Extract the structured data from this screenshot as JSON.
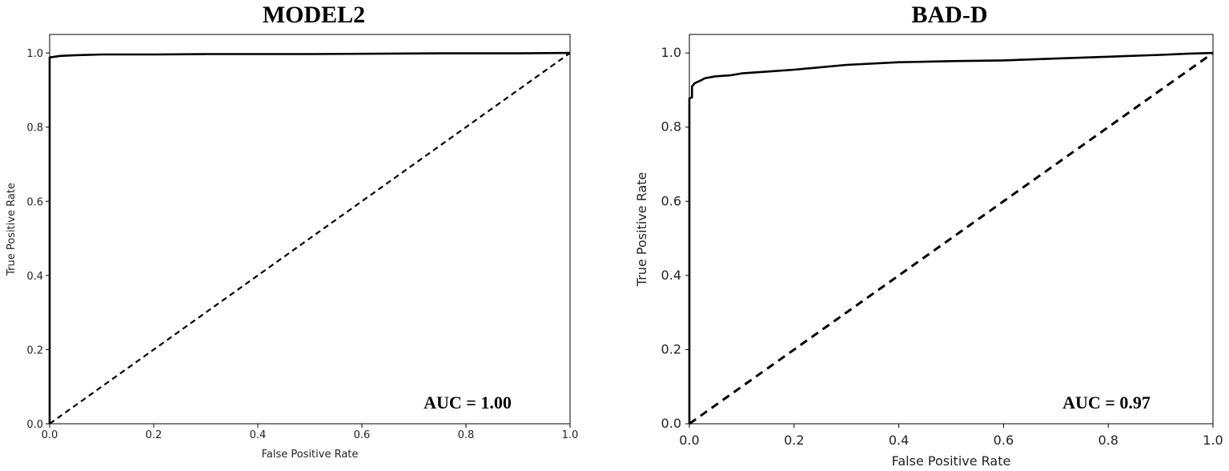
{
  "chart_data": [
    {
      "type": "line",
      "title": "MODEL2",
      "xlabel": "False Positive Rate",
      "ylabel": "True Positive Rate",
      "xlim": [
        0.0,
        1.0
      ],
      "ylim": [
        0.0,
        1.05
      ],
      "xticks": [
        "0.0",
        "0.2",
        "0.4",
        "0.6",
        "0.8",
        "1.0"
      ],
      "yticks": [
        "0.0",
        "0.2",
        "0.4",
        "0.6",
        "0.8",
        "1.0"
      ],
      "annotation": "AUC = 1.00",
      "grid": false,
      "series": [
        {
          "style": "solid",
          "x": [
            0.0,
            0.0,
            0.01,
            0.02,
            0.05,
            0.1,
            0.2,
            0.3,
            0.5,
            0.75,
            0.9,
            1.0
          ],
          "y": [
            0.0,
            0.988,
            0.99,
            0.992,
            0.994,
            0.996,
            0.996,
            0.997,
            0.997,
            0.999,
            0.999,
            1.0
          ]
        },
        {
          "style": "dashed",
          "x": [
            0.0,
            1.0
          ],
          "y": [
            0.0,
            1.0
          ]
        }
      ]
    },
    {
      "type": "line",
      "title": "BAD-D",
      "xlabel": "False Positive Rate",
      "ylabel": "True Positive Rate",
      "xlim": [
        0.0,
        1.0
      ],
      "ylim": [
        0.0,
        1.05
      ],
      "xticks": [
        "0.0",
        "0.2",
        "0.4",
        "0.6",
        "0.8",
        "1.0"
      ],
      "yticks": [
        "0.0",
        "0.2",
        "0.4",
        "0.6",
        "0.8",
        "1.0"
      ],
      "annotation": "AUC = 0.97",
      "grid": false,
      "series": [
        {
          "style": "solid",
          "x": [
            0.0,
            0.0,
            0.005,
            0.005,
            0.01,
            0.02,
            0.03,
            0.05,
            0.08,
            0.1,
            0.15,
            0.2,
            0.3,
            0.4,
            0.5,
            0.6,
            0.7,
            0.8,
            0.9,
            0.95,
            1.0
          ],
          "y": [
            0.0,
            0.878,
            0.88,
            0.91,
            0.918,
            0.925,
            0.932,
            0.937,
            0.94,
            0.945,
            0.95,
            0.955,
            0.968,
            0.975,
            0.978,
            0.98,
            0.985,
            0.99,
            0.995,
            0.998,
            1.0
          ]
        },
        {
          "style": "dashed",
          "x": [
            0.0,
            1.0
          ],
          "y": [
            0.0,
            1.0
          ]
        }
      ]
    }
  ]
}
